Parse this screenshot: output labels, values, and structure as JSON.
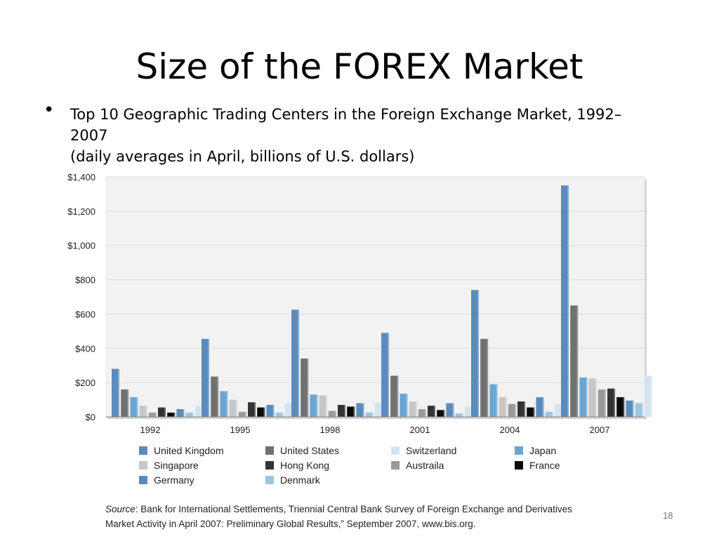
{
  "slide": {
    "title": "Size of the FOREX Market",
    "bullet_line1": "Top 10 Geographic Trading Centers in the Foreign Exchange Market, 1992–",
    "bullet_line2": "2007",
    "bullet_line3": "(daily averages in April, billions of U.S. dollars)",
    "source_label": "Source",
    "source_text": ": Bank for International Settlements,    Triennial Central Bank Survey of Foreign Exchange and Derivatives",
    "source_text2": "Market Activity in April 2007: Preliminary Global Results,” September 2007, www.bis.org.",
    "page_number": "18"
  },
  "chart_data": {
    "type": "bar",
    "categories": [
      "1992",
      "1995",
      "1998",
      "2001",
      "2004",
      "2007"
    ],
    "ylim": [
      0,
      1400
    ],
    "yticks": [
      {
        "value": 0,
        "label": "$0"
      },
      {
        "value": 200,
        "label": "$200"
      },
      {
        "value": 400,
        "label": "$400"
      },
      {
        "value": 600,
        "label": "$600"
      },
      {
        "value": 800,
        "label": "$800"
      },
      {
        "value": 1000,
        "label": "$1,000"
      },
      {
        "value": 1200,
        "label": "$1,200"
      },
      {
        "value": 1400,
        "label": "$1,400"
      }
    ],
    "grid": true,
    "legend_position": "bottom",
    "series": [
      {
        "name": "United Kingdom",
        "color": "#5b8bbd",
        "values": [
          280,
          455,
          625,
          490,
          740,
          1350
        ]
      },
      {
        "name": "United States",
        "color": "#707070",
        "values": [
          160,
          235,
          340,
          240,
          455,
          650
        ]
      },
      {
        "name": "Japan",
        "color": "#6aa6d4",
        "values": [
          115,
          150,
          130,
          135,
          190,
          230
        ]
      },
      {
        "name": "Singapore",
        "color": "#c6c6c6",
        "values": [
          65,
          100,
          125,
          90,
          115,
          225
        ]
      },
      {
        "name": "Australia",
        "color": "#9a9a9a",
        "values": [
          25,
          30,
          35,
          45,
          75,
          160
        ]
      },
      {
        "name": "Hong Kong",
        "color": "#333333",
        "values": [
          55,
          85,
          70,
          65,
          90,
          165
        ]
      },
      {
        "name": "France",
        "color": "#0b0b0b",
        "values": [
          25,
          55,
          60,
          40,
          55,
          115
        ]
      },
      {
        "name": "Germany",
        "color": "#5b8bbd",
        "values": [
          45,
          70,
          80,
          80,
          115,
          95
        ]
      },
      {
        "name": "Denmark",
        "color": "#9cc6e2",
        "values": [
          25,
          25,
          25,
          20,
          30,
          80
        ]
      },
      {
        "name": "Switzerland",
        "color": "#d3e4ef",
        "values": [
          65,
          80,
          80,
          60,
          75,
          240
        ]
      }
    ],
    "legend_order": [
      "United Kingdom",
      "United States",
      "Switzerland",
      "Japan",
      "Singapore",
      "Hong Kong",
      "Austraila",
      "France",
      "Germany",
      "Denmark"
    ],
    "legend_colors": [
      "#5b8bbd",
      "#707070",
      "#d3e4ef",
      "#6aa6d4",
      "#c6c6c6",
      "#333333",
      "#9a9a9a",
      "#0b0b0b",
      "#5b8bbd",
      "#9cc6e2"
    ],
    "plot_bg": "#f2f2f2",
    "grid_color": "#dadada"
  }
}
